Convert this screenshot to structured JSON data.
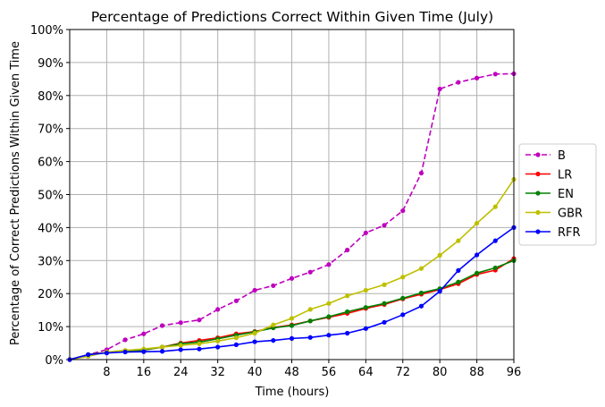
{
  "chart_data": {
    "type": "line",
    "title": "Percentage of Predictions Correct Within Given Time (July)",
    "xlabel": "Time (hours)",
    "ylabel": "Percentage of Correct Predictions Within Given Time",
    "xlim": [
      0,
      96
    ],
    "ylim": [
      0,
      100
    ],
    "xticks": [
      8,
      16,
      24,
      32,
      40,
      48,
      56,
      64,
      72,
      80,
      88,
      96
    ],
    "yticks": [
      0,
      10,
      20,
      30,
      40,
      50,
      60,
      70,
      80,
      90,
      100
    ],
    "ytick_suffix": "%",
    "grid": true,
    "legend_position": "center-right outside",
    "x": [
      0,
      4,
      8,
      12,
      16,
      20,
      24,
      28,
      32,
      36,
      40,
      44,
      48,
      52,
      56,
      60,
      64,
      68,
      72,
      76,
      80,
      84,
      88,
      92,
      96
    ],
    "series": [
      {
        "name": "B",
        "color": "#bf00bf",
        "dashed": true,
        "values": [
          0,
          1.5,
          3,
          6,
          7.8,
          10.3,
          11.2,
          12,
          15.2,
          17.8,
          21,
          22.4,
          24.6,
          26.5,
          28.8,
          33.2,
          38.4,
          40.7,
          45.1,
          56.5,
          82,
          84,
          85.3,
          86.5,
          86.6
        ]
      },
      {
        "name": "LR",
        "color": "#ff0000",
        "dashed": false,
        "values": [
          0,
          1.5,
          2.2,
          2.6,
          2.9,
          3.8,
          5,
          5.8,
          6.6,
          7.8,
          8.5,
          9.7,
          10.5,
          11.7,
          12.8,
          14,
          15.5,
          16.7,
          18.4,
          19.8,
          21.2,
          23,
          25.8,
          27.1,
          30.6
        ]
      },
      {
        "name": "EN",
        "color": "#008000",
        "dashed": false,
        "values": [
          0,
          1.5,
          2.2,
          2.6,
          2.9,
          3.8,
          4.8,
          5.3,
          6.3,
          7.4,
          8.4,
          9.6,
          10.3,
          11.7,
          13,
          14.5,
          15.8,
          17,
          18.6,
          20.2,
          21.5,
          23.5,
          26.2,
          27.8,
          30
        ]
      },
      {
        "name": "GBR",
        "color": "#bfbf00",
        "dashed": false,
        "values": [
          0,
          1,
          2.3,
          2.8,
          3.2,
          3.8,
          4.3,
          4.8,
          5.6,
          6.6,
          8,
          10.5,
          12.5,
          15.2,
          17,
          19.3,
          21,
          22.7,
          25,
          27.6,
          31.6,
          36,
          41.3,
          46.3,
          54.6
        ]
      },
      {
        "name": "RFR",
        "color": "#0000ff",
        "dashed": false,
        "values": [
          0,
          1.5,
          2,
          2.3,
          2.4,
          2.5,
          3,
          3.2,
          3.8,
          4.5,
          5.4,
          5.8,
          6.4,
          6.7,
          7.4,
          8,
          9.4,
          11.3,
          13.6,
          16.2,
          20.7,
          27,
          31.7,
          36,
          40
        ]
      }
    ]
  }
}
